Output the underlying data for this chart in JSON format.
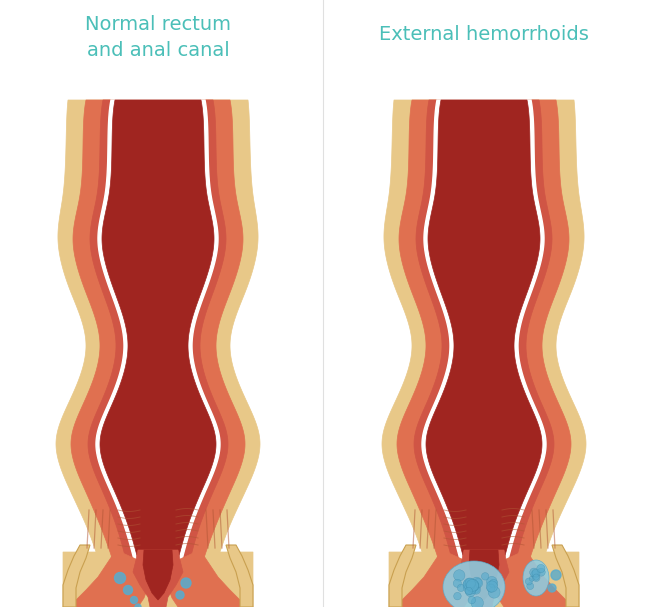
{
  "title_left": "Normal rectum\nand anal canal",
  "title_right": "External hemorrhoids",
  "title_color": "#4bbfb8",
  "bg_color": "#ffffff",
  "title_fontsize": 14,
  "fig_width": 6.46,
  "fig_height": 6.07,
  "colors": {
    "outer_tissue": "#e8c89a",
    "outer_tissue_dark": "#c9a050",
    "muscle_outer": "#e07050",
    "muscle_mid": "#c85030",
    "muscle_inner": "#d05040",
    "lumen_wall": "#d05545",
    "lumen_inner": "#b03530",
    "lumen_fill": "#a02520",
    "inner_canal": "#c04035",
    "white_line": "#ffffff",
    "hemorrhoid_blue": "#5aabcc",
    "hemorrhoid_blue_light": "#90cce0",
    "skin_peach": "#f0c898",
    "skin_light": "#f5ddb0",
    "fatty_tissue": "#e8c888",
    "anal_skin": "#d08060",
    "bg_light": "#faf8f5"
  }
}
